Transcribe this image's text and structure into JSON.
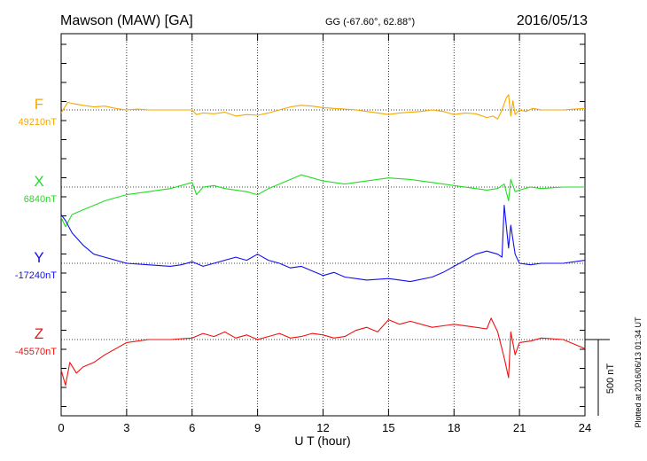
{
  "header": {
    "station": "Mawson (MAW)  [GA]",
    "coords": "GG (-67.60°,  62.88°)",
    "date": "2016/05/13"
  },
  "footer": {
    "plotted_note": "Plotted at 2016/06/13 01:34  UT"
  },
  "scale_bar": {
    "label": "500 nT",
    "value_nT": 500
  },
  "chart_data": {
    "type": "line",
    "title": "Mawson (MAW)  [GA]",
    "xlabel": "U T (hour)",
    "xlim": [
      0,
      24
    ],
    "x_ticks": [
      "0",
      "3",
      "6",
      "9",
      "12",
      "15",
      "18",
      "21",
      "24"
    ],
    "grid": "dotted vertical lines every 3 h, dotted baseline per trace",
    "series": [
      {
        "name": "F",
        "baseline_label": "49210nT",
        "color": "#f5a800",
        "x": [
          0,
          0.3,
          0.6,
          1,
          1.5,
          2,
          2.5,
          3,
          3.5,
          4,
          5,
          6,
          6.2,
          6.5,
          7,
          7.5,
          8,
          8.5,
          9,
          9.5,
          10,
          10.5,
          11,
          11.5,
          12,
          12.5,
          13,
          13.5,
          14,
          14.5,
          15,
          15.5,
          16,
          16.5,
          17,
          17.5,
          18,
          18.5,
          19,
          19.5,
          19.8,
          20,
          20.2,
          20.4,
          20.5,
          20.6,
          20.7,
          20.8,
          21,
          21.3,
          21.6,
          22,
          23,
          23.5,
          24
        ],
        "values": [
          -20,
          50,
          40,
          30,
          20,
          25,
          10,
          0,
          5,
          0,
          0,
          0,
          -30,
          -20,
          -25,
          -15,
          -40,
          -30,
          -35,
          -20,
          0,
          20,
          30,
          25,
          15,
          10,
          5,
          0,
          -10,
          -20,
          -30,
          -20,
          -15,
          -10,
          0,
          -10,
          -30,
          -20,
          -25,
          -50,
          -40,
          -60,
          0,
          80,
          100,
          -40,
          60,
          -30,
          0,
          -10,
          10,
          0,
          0,
          5,
          10
        ]
      },
      {
        "name": "X",
        "baseline_label": "6840nT",
        "color": "#22dd22",
        "x": [
          0,
          0.2,
          0.5,
          1,
          1.5,
          2,
          2.5,
          3,
          4,
          5,
          5.5,
          6,
          6.2,
          6.5,
          7,
          7.5,
          8,
          8.5,
          9,
          9.5,
          10,
          10.5,
          11,
          11.5,
          12,
          13,
          14,
          15,
          16,
          17,
          18,
          19,
          19.5,
          20,
          20.3,
          20.5,
          20.6,
          20.8,
          21,
          21.5,
          22,
          23,
          24
        ],
        "values": [
          -200,
          -260,
          -180,
          -150,
          -120,
          -90,
          -70,
          -50,
          -30,
          -10,
          10,
          30,
          -50,
          0,
          10,
          -10,
          -20,
          -30,
          -50,
          -10,
          20,
          50,
          80,
          60,
          40,
          20,
          40,
          60,
          50,
          30,
          10,
          -10,
          -20,
          -10,
          20,
          -90,
          50,
          -30,
          -20,
          0,
          -10,
          0,
          0
        ]
      },
      {
        "name": "Y",
        "baseline_label": "-17240nT",
        "color": "#1111ee",
        "x": [
          0,
          0.2,
          0.5,
          1,
          1.5,
          2,
          3,
          4,
          5,
          5.5,
          6,
          6.5,
          7,
          8,
          8.5,
          9,
          9.5,
          10,
          10.5,
          11,
          11.5,
          12,
          12.5,
          13,
          13.5,
          14,
          15,
          16,
          17,
          17.5,
          18,
          18.5,
          19,
          19.5,
          20,
          20.2,
          20.3,
          20.5,
          20.6,
          20.8,
          21,
          21.5,
          22,
          23,
          24
        ],
        "values": [
          320,
          280,
          200,
          120,
          60,
          40,
          0,
          -10,
          -20,
          -10,
          10,
          -20,
          0,
          40,
          20,
          60,
          20,
          0,
          -30,
          -20,
          -50,
          -80,
          -60,
          -90,
          -100,
          -110,
          -100,
          -120,
          -90,
          -60,
          -20,
          20,
          60,
          80,
          60,
          40,
          380,
          100,
          250,
          60,
          0,
          -10,
          0,
          0,
          20
        ]
      },
      {
        "name": "Z",
        "baseline_label": "-45570nT",
        "color": "#ee1111",
        "x": [
          0,
          0.2,
          0.4,
          0.7,
          1,
          1.5,
          2,
          2.5,
          3,
          4,
          5,
          6,
          6.5,
          7,
          7.5,
          8,
          8.5,
          9,
          9.5,
          10,
          10.5,
          11,
          11.5,
          12,
          12.5,
          13,
          13.5,
          14,
          14.5,
          15,
          15.5,
          16,
          17,
          18,
          19,
          19.5,
          19.7,
          20,
          20.3,
          20.5,
          20.6,
          20.8,
          21,
          21.5,
          22,
          23,
          24
        ],
        "values": [
          -200,
          -300,
          -150,
          -220,
          -180,
          -150,
          -100,
          -60,
          -20,
          0,
          0,
          10,
          40,
          20,
          50,
          10,
          30,
          0,
          20,
          40,
          10,
          20,
          40,
          30,
          10,
          20,
          60,
          80,
          50,
          130,
          100,
          120,
          80,
          100,
          80,
          70,
          140,
          50,
          -120,
          -250,
          50,
          -100,
          -20,
          -10,
          10,
          0,
          -60
        ]
      }
    ]
  }
}
